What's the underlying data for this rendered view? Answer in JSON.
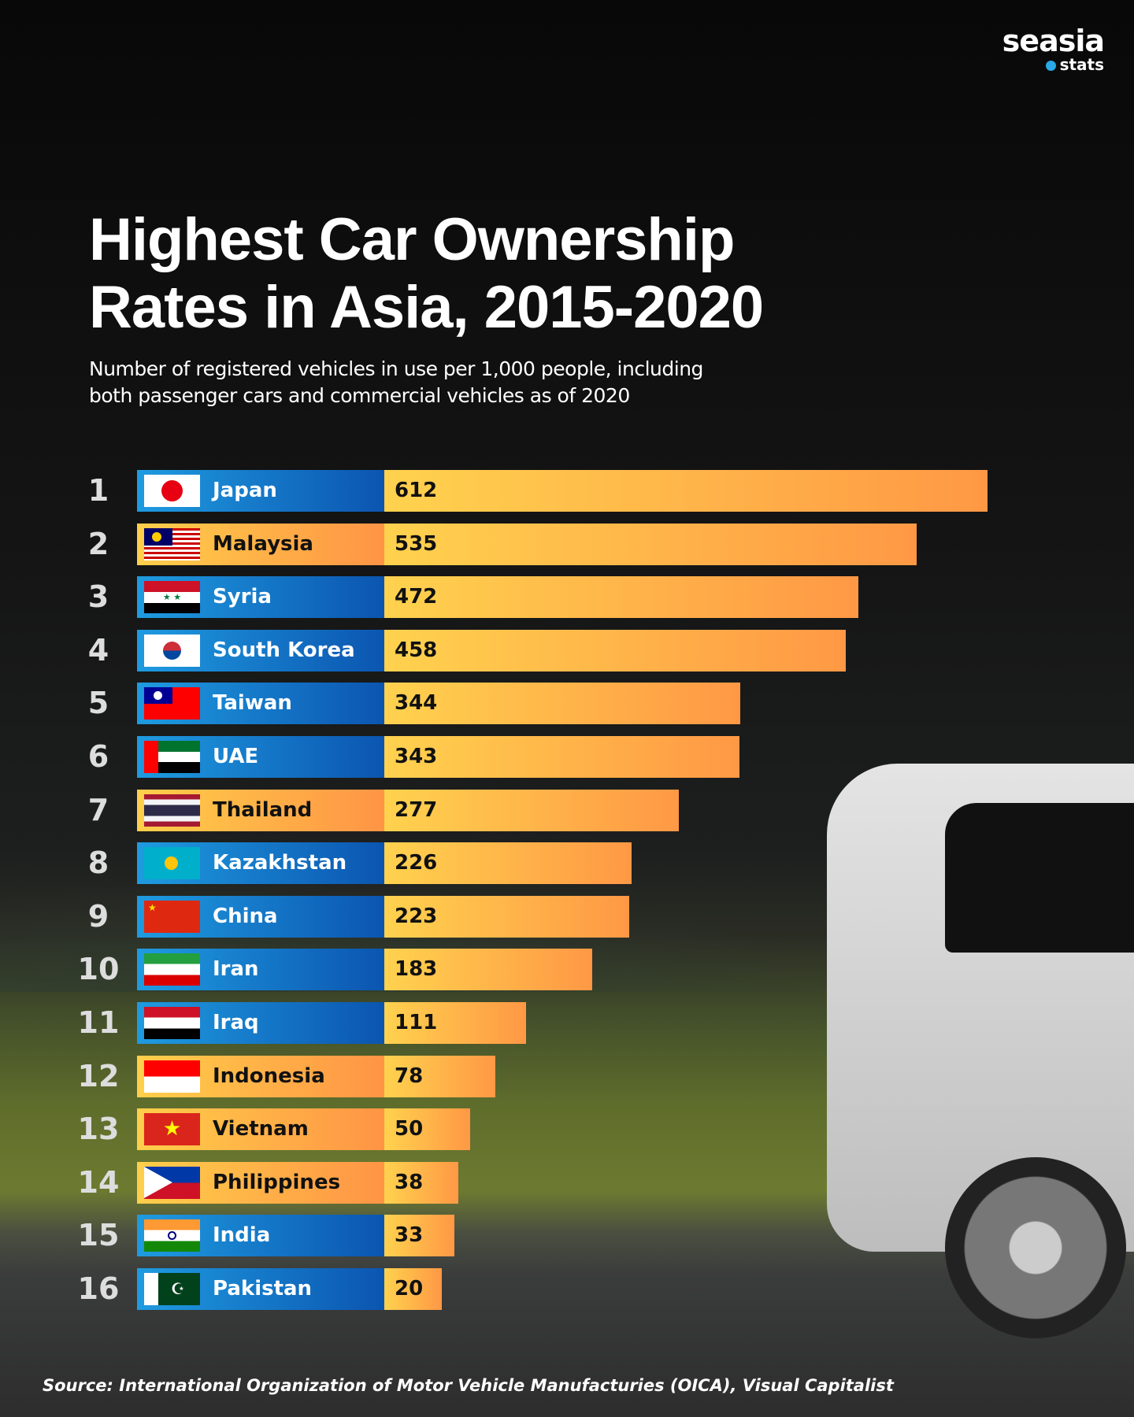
{
  "brand": {
    "name": "seasia",
    "sub": "stats"
  },
  "title_line1": "Highest Car Ownership",
  "title_line2": "Rates in Asia, 2015-2020",
  "subtitle_line1": "Number of registered vehicles in use per 1,000 people, including",
  "subtitle_line2": "both passenger cars and commercial vehicles as of 2020",
  "source": "Source: International Organization of Motor Vehicle Manufacturies (OICA), Visual Capitalist",
  "colors": {
    "blue_start": "#1f9be0",
    "blue_end": "#0b55b0",
    "orange_start": "#ffcf4a",
    "orange_end": "#ff9445"
  },
  "chart_data": {
    "type": "bar",
    "orientation": "horizontal",
    "title": "Highest Car Ownership Rates in Asia, 2015-2020",
    "categories": [
      "Japan",
      "Malaysia",
      "Syria",
      "South Korea",
      "Taiwan",
      "UAE",
      "Thailand",
      "Kazakhstan",
      "China",
      "Iran",
      "Iraq",
      "Indonesia",
      "Vietnam",
      "Philippines",
      "India",
      "Pakistan"
    ],
    "ranks": [
      "1",
      "2",
      "3",
      "4",
      "5",
      "6",
      "7",
      "8",
      "9",
      "10",
      "11",
      "12",
      "13",
      "14",
      "15",
      "16"
    ],
    "values": [
      612,
      535,
      472,
      458,
      344,
      343,
      277,
      226,
      223,
      183,
      111,
      78,
      50,
      38,
      33,
      20
    ],
    "label_style": [
      "blue",
      "orange",
      "blue",
      "blue",
      "blue",
      "blue",
      "orange",
      "blue",
      "blue",
      "blue",
      "blue",
      "orange",
      "orange",
      "orange",
      "blue",
      "blue"
    ]
  }
}
